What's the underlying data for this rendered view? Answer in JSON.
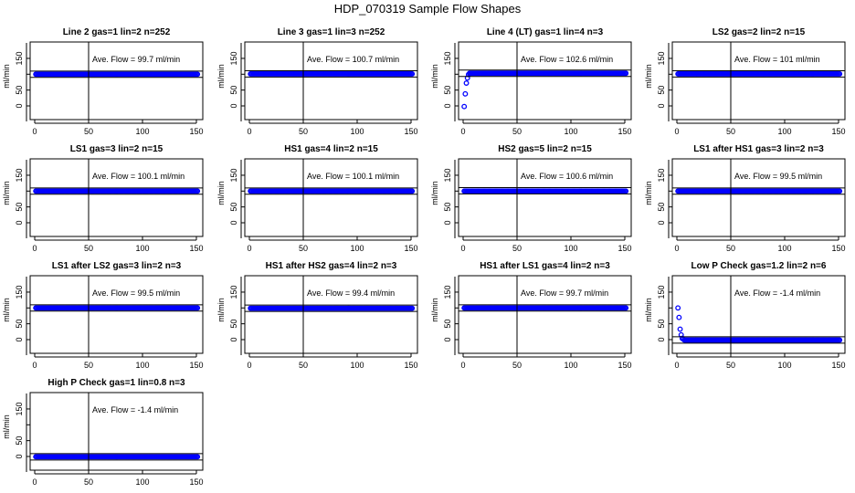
{
  "title": "HDP_070319  Sample Flow Shapes",
  "chart_data": {
    "type": "scatter",
    "title": "HDP_070319  Sample Flow Shapes",
    "xlim": [
      0,
      150
    ],
    "ylim": [
      -40,
      200
    ],
    "x_ticks": [
      0,
      50,
      100,
      150
    ],
    "y_ticks": [
      0,
      50,
      150
    ],
    "ylabel": "ml/min",
    "vertical_line_x": 50,
    "point_color": "#0000ff",
    "panels": [
      {
        "title": "Line 2 gas=1 lin=2 n=252",
        "annotation": "Ave. Flow =  99.7  ml/min",
        "band": [
          90,
          110
        ],
        "points": [
          [
            1,
            100
          ],
          [
            151,
            100
          ]
        ]
      },
      {
        "title": "Line 3 gas=1 lin=3 n=252",
        "annotation": "Ave. Flow =  100.7  ml/min",
        "band": [
          91,
          111
        ],
        "points": [
          [
            1,
            101
          ],
          [
            151,
            101
          ]
        ]
      },
      {
        "title": "Line 4 (LT) gas=1 lin=4 n=3",
        "annotation": "Ave. Flow =  102.6  ml/min",
        "band": [
          93,
          113
        ],
        "points": [
          [
            1,
            -2
          ],
          [
            2,
            38
          ],
          [
            3,
            72
          ],
          [
            4,
            88
          ],
          [
            5,
            99
          ],
          [
            6,
            103
          ],
          [
            151,
            103
          ]
        ]
      },
      {
        "title": "LS2 gas=2 lin=2 n=15",
        "annotation": "Ave. Flow =  101  ml/min",
        "band": [
          91,
          111
        ],
        "points": [
          [
            1,
            101
          ],
          [
            151,
            101
          ]
        ]
      },
      {
        "title": "LS1 gas=3 lin=2 n=15",
        "annotation": "Ave. Flow =  100.1  ml/min",
        "band": [
          90,
          110
        ],
        "points": [
          [
            1,
            100
          ],
          [
            151,
            100
          ]
        ]
      },
      {
        "title": "HS1 gas=4 lin=2 n=15",
        "annotation": "Ave. Flow =  100.1  ml/min",
        "band": [
          90,
          110
        ],
        "points": [
          [
            1,
            100
          ],
          [
            151,
            100
          ]
        ]
      },
      {
        "title": "HS2 gas=5 lin=2 n=15",
        "annotation": "Ave. Flow =  100.6  ml/min",
        "band": [
          91,
          111
        ],
        "points": [
          [
            1,
            100
          ],
          [
            151,
            100
          ]
        ]
      },
      {
        "title": "LS1 after HS1 gas=3 lin=2 n=3",
        "annotation": "Ave. Flow =  99.5  ml/min",
        "band": [
          90,
          110
        ],
        "points": [
          [
            1,
            100
          ],
          [
            151,
            100
          ]
        ]
      },
      {
        "title": "LS1 after LS2 gas=3 lin=2 n=3",
        "annotation": "Ave. Flow =  99.5  ml/min",
        "band": [
          90,
          110
        ],
        "points": [
          [
            1,
            100
          ],
          [
            151,
            100
          ]
        ]
      },
      {
        "title": "HS1 after HS2 gas=4 lin=2 n=3",
        "annotation": "Ave. Flow =  99.4  ml/min",
        "band": [
          89,
          109
        ],
        "points": [
          [
            1,
            99
          ],
          [
            151,
            99
          ]
        ]
      },
      {
        "title": "HS1 after LS1 gas=4 lin=2 n=3",
        "annotation": "Ave. Flow =  99.7  ml/min",
        "band": [
          90,
          110
        ],
        "points": [
          [
            1,
            100
          ],
          [
            151,
            100
          ]
        ]
      },
      {
        "title": "Low P Check gas=1.2 lin=2 n=6",
        "annotation": "Ave. Flow =  -1.4  ml/min",
        "band": [
          -11,
          9
        ],
        "points": [
          [
            1,
            100
          ],
          [
            2,
            70
          ],
          [
            3,
            33
          ],
          [
            4,
            15
          ],
          [
            5,
            4
          ],
          [
            7,
            -1.4
          ],
          [
            151,
            -1.4
          ]
        ]
      },
      {
        "title": "High P Check gas=1 lin=0.8 n=3",
        "annotation": "Ave. Flow =  -1.4  ml/min",
        "band": [
          -11,
          9
        ],
        "points": [
          [
            1,
            -1
          ],
          [
            151,
            -1
          ]
        ]
      }
    ]
  }
}
